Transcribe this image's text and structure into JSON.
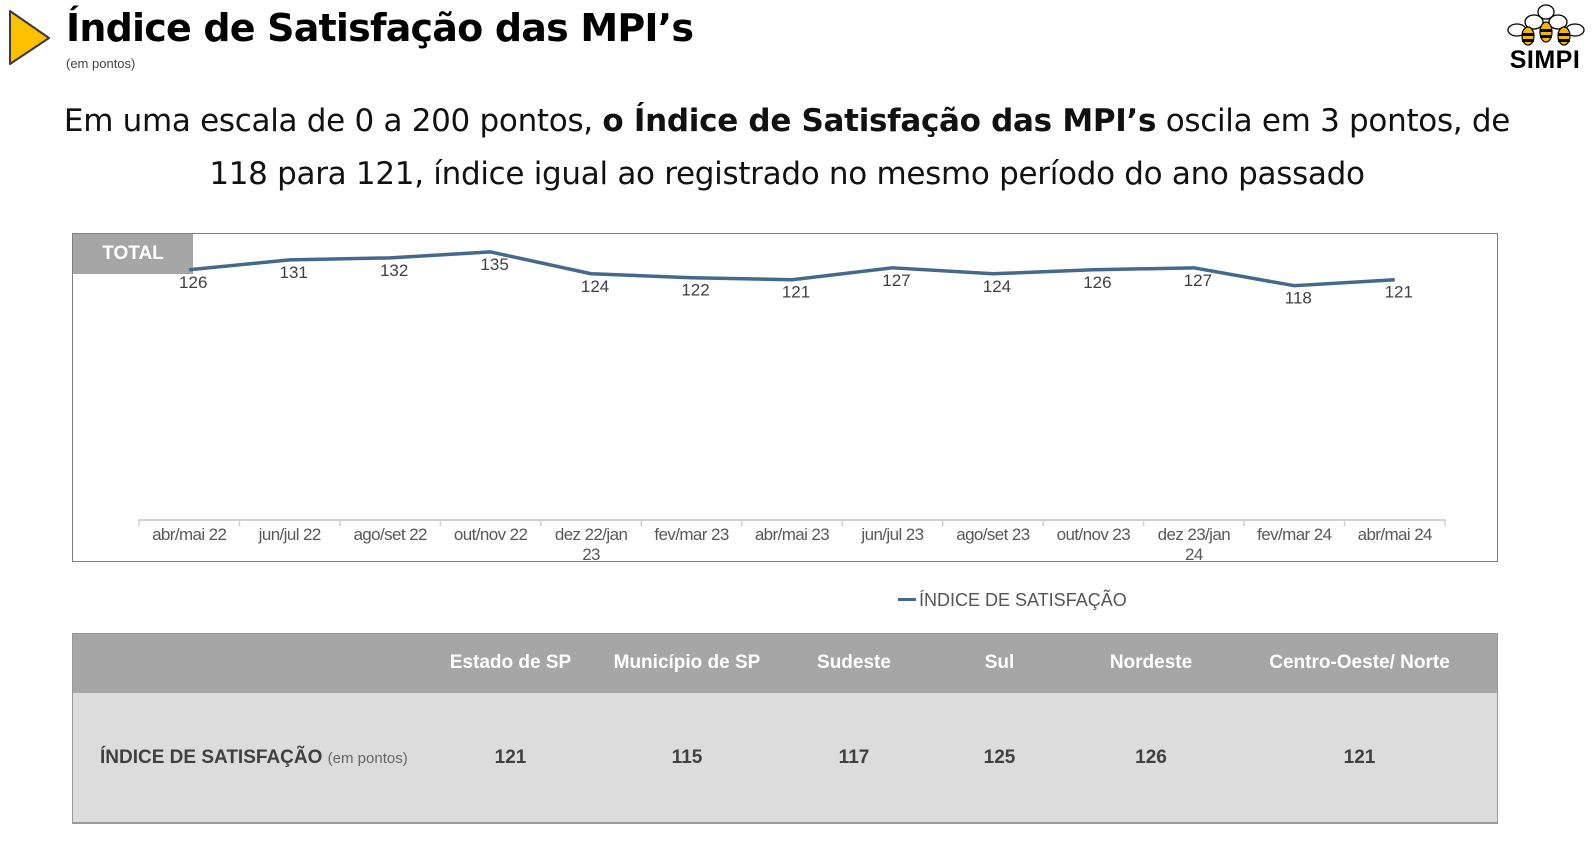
{
  "header": {
    "title": "Índice de Satisfação das MPI’s",
    "subtitle": "(em pontos)",
    "logo_text": "SIMPI"
  },
  "headline": {
    "part1": "Em uma escala de 0 a 200 pontos, ",
    "bold": "o Índice de Satisfação das MPI’s",
    "part2": " oscila em 3 pontos, de 118 para 121, índice igual ao registrado no mesmo período do ano passado"
  },
  "chart_tag": "TOTAL",
  "chart_data": {
    "type": "line",
    "categories": [
      "abr/mai 22",
      "jun/jul 22",
      "ago/set 22",
      "out/nov 22",
      "dez 22/jan 23",
      "fev/mar 23",
      "abr/mai 23",
      "jun/jul 23",
      "ago/set 23",
      "out/nov 23",
      "dez 23/jan 24",
      "fev/mar 24",
      "abr/mai 24"
    ],
    "series": [
      {
        "name": "ÍNDICE DE SATISFAÇÃO",
        "values": [
          126,
          131,
          132,
          135,
          124,
          122,
          121,
          127,
          124,
          126,
          127,
          118,
          121
        ],
        "color": "#44698c"
      }
    ],
    "ylim": [
      0,
      140
    ],
    "grid": false,
    "legend": "bottom",
    "title": "",
    "xlabel": "",
    "ylabel": ""
  },
  "table": {
    "columns": [
      "",
      "Estado de  SP",
      "Município de SP",
      "Sudeste",
      "Sul",
      "Nordeste",
      "Centro-Oeste/ Norte"
    ],
    "row_label": "ÍNDICE DE SATISFAÇÃO",
    "row_unit": "(em pontos)",
    "values": [
      "121",
      "115",
      "117",
      "125",
      "126",
      "121"
    ]
  },
  "colors": {
    "accent_yellow": "#ffc000",
    "header_gray": "#a6a6a6",
    "row_gray": "#dcdcdc",
    "line_blue": "#44698c"
  }
}
